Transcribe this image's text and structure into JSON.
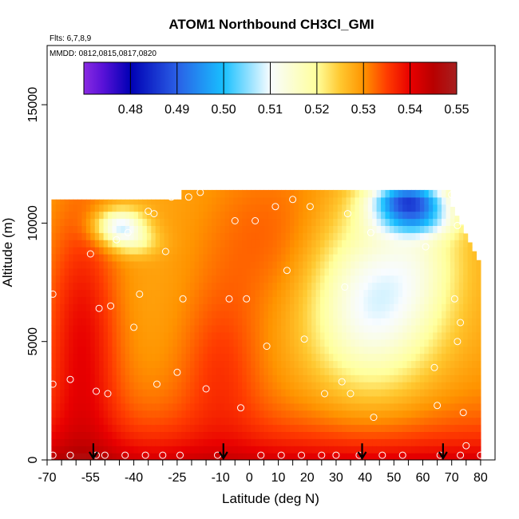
{
  "chart_data": {
    "type": "heatmap",
    "title": "ATOM1 Northbound CH3Cl_GMI",
    "flights_note": "Flts: 6,7,8,9",
    "dates_note": "MMDD: 0812,0815,0817,0820",
    "xlabel": "Latitude (deg N)",
    "ylabel": "Altitude (m)",
    "xlim": [
      -70,
      85
    ],
    "ylim": [
      0,
      17500
    ],
    "x_ticks": [
      -70,
      -55,
      -40,
      -25,
      -10,
      0,
      10,
      20,
      30,
      40,
      50,
      60,
      70,
      80
    ],
    "x_tick_labels": [
      "-70",
      "-55",
      "-40",
      "-25",
      "-10",
      "0",
      "10",
      "20",
      "30",
      "40",
      "50",
      "60",
      "70",
      "80"
    ],
    "x_minor_ticks": [
      -65,
      -60,
      -50,
      -45,
      -35,
      -30,
      -20,
      -15,
      -5,
      5,
      15,
      25,
      35,
      45,
      55,
      65,
      75
    ],
    "y_ticks": [
      0,
      5000,
      10000,
      15000
    ],
    "y_tick_labels": [
      "0",
      "5000",
      "10000",
      "15000"
    ],
    "colorbar": {
      "range": [
        0.47,
        0.55
      ],
      "ticks": [
        0.48,
        0.49,
        0.5,
        0.51,
        0.52,
        0.53,
        0.54,
        0.55
      ],
      "tick_labels": [
        "0.48",
        "0.49",
        "0.50",
        "0.51",
        "0.52",
        "0.53",
        "0.54",
        "0.55"
      ],
      "stops": [
        {
          "v": 0.47,
          "color": "#8a2be2"
        },
        {
          "v": 0.474,
          "color": "#5a12d8"
        },
        {
          "v": 0.48,
          "color": "#0000b4"
        },
        {
          "v": 0.49,
          "color": "#2a5fe6"
        },
        {
          "v": 0.5,
          "color": "#18c0ff"
        },
        {
          "v": 0.51,
          "color": "#f8fcff"
        },
        {
          "v": 0.52,
          "color": "#ffff9c"
        },
        {
          "v": 0.525,
          "color": "#ffc830"
        },
        {
          "v": 0.53,
          "color": "#ff9400"
        },
        {
          "v": 0.535,
          "color": "#ff3c00"
        },
        {
          "v": 0.54,
          "color": "#e80000"
        },
        {
          "v": 0.545,
          "color": "#b80000"
        },
        {
          "v": 0.55,
          "color": "#a62020"
        }
      ]
    },
    "markers": {
      "description": "flight-pass arrows",
      "latitudes": [
        -54,
        -9,
        39,
        67
      ]
    },
    "observations": [
      [
        -68,
        200
      ],
      [
        -68,
        3200
      ],
      [
        -68,
        7000
      ],
      [
        -62,
        200
      ],
      [
        -62,
        3400
      ],
      [
        -55,
        8700
      ],
      [
        -53,
        200
      ],
      [
        -53,
        2900
      ],
      [
        -52,
        6400
      ],
      [
        -50,
        200
      ],
      [
        -49,
        2800
      ],
      [
        -48,
        6500
      ],
      [
        -46,
        9300
      ],
      [
        -43,
        200
      ],
      [
        -42,
        9600
      ],
      [
        -40,
        5600
      ],
      [
        -38,
        7000
      ],
      [
        -36,
        200
      ],
      [
        -35,
        10500
      ],
      [
        -33,
        10400
      ],
      [
        -32,
        3200
      ],
      [
        -30,
        200
      ],
      [
        -29,
        8800
      ],
      [
        -27,
        11100
      ],
      [
        -25,
        3700
      ],
      [
        -24,
        200
      ],
      [
        -23,
        6800
      ],
      [
        -21,
        11100
      ],
      [
        -17,
        11300
      ],
      [
        -15,
        3000
      ],
      [
        -11,
        200
      ],
      [
        -7,
        6800
      ],
      [
        -5,
        10100
      ],
      [
        -3,
        2200
      ],
      [
        -1,
        6800
      ],
      [
        2,
        10100
      ],
      [
        4,
        200
      ],
      [
        6,
        4800
      ],
      [
        9,
        10700
      ],
      [
        11,
        200
      ],
      [
        13,
        8000
      ],
      [
        15,
        11000
      ],
      [
        18,
        200
      ],
      [
        19,
        5100
      ],
      [
        21,
        10700
      ],
      [
        25,
        200
      ],
      [
        26,
        2800
      ],
      [
        30,
        200
      ],
      [
        32,
        3300
      ],
      [
        33,
        7300
      ],
      [
        34,
        10400
      ],
      [
        35,
        2800
      ],
      [
        38,
        200
      ],
      [
        42,
        9600
      ],
      [
        43,
        1800
      ],
      [
        46,
        200
      ],
      [
        53,
        200
      ],
      [
        61,
        9000
      ],
      [
        64,
        3900
      ],
      [
        65,
        2300
      ],
      [
        66,
        200
      ],
      [
        70,
        11200
      ],
      [
        71,
        6800
      ],
      [
        72,
        9900
      ],
      [
        72,
        5000
      ],
      [
        73,
        200
      ],
      [
        73,
        5800
      ],
      [
        74,
        2000
      ],
      [
        75,
        600
      ],
      [
        80,
        200
      ]
    ]
  }
}
